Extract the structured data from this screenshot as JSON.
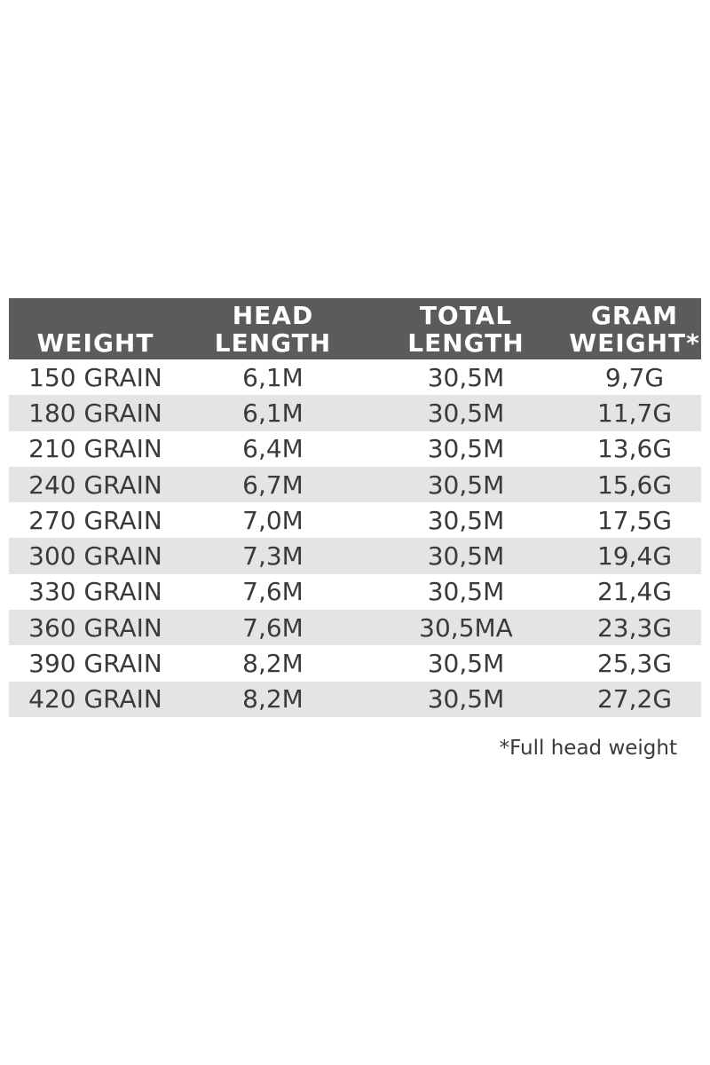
{
  "table": {
    "header": [
      [
        "WEIGHT"
      ],
      [
        "HEAD",
        "LENGTH"
      ],
      [
        "TOTAL",
        "LENGTH"
      ],
      [
        "GRAM",
        "WEIGHT*"
      ]
    ],
    "rows": [
      [
        "150 GRAIN",
        "6,1M",
        "30,5M",
        "9,7G"
      ],
      [
        "180 GRAIN",
        "6,1M",
        "30,5M",
        "11,7G"
      ],
      [
        "210 GRAIN",
        "6,4M",
        "30,5M",
        "13,6G"
      ],
      [
        "240 GRAIN",
        "6,7M",
        "30,5M",
        "15,6G"
      ],
      [
        "270 GRAIN",
        "7,0M",
        "30,5M",
        "17,5G"
      ],
      [
        "300 GRAIN",
        "7,3M",
        "30,5M",
        "19,4G"
      ],
      [
        "330 GRAIN",
        "7,6M",
        "30,5M",
        "21,4G"
      ],
      [
        "360 GRAIN",
        "7,6M",
        "30,5MA",
        "23,3G"
      ],
      [
        "390 GRAIN",
        "8,2M",
        "30,5M",
        "25,3G"
      ],
      [
        "420 GRAIN",
        "8,2M",
        "30,5M",
        "27,2G"
      ]
    ]
  },
  "footnote": "*Full head weight"
}
